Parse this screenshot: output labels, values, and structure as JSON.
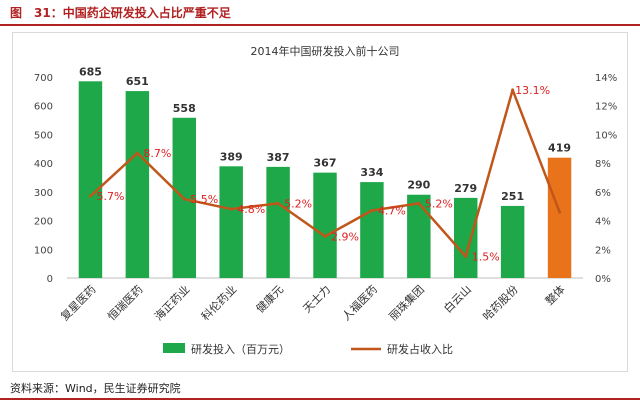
{
  "figure": {
    "title": "图　31：中国药企研发投入占比严重不足",
    "source": "资料来源：Wind，民生证券研究院"
  },
  "chart_data": {
    "type": "bar+line",
    "title": "2014年中国研发投入前十公司",
    "categories": [
      "复星医药",
      "恒瑞医药",
      "海正药业",
      "科伦药业",
      "健康元",
      "天士力",
      "人福医药",
      "丽珠集团",
      "白云山",
      "哈药股份",
      "整体"
    ],
    "series": [
      {
        "name": "研发投入（百万元）",
        "type": "bar",
        "axis": "left",
        "values": [
          685,
          651,
          558,
          389,
          387,
          367,
          334,
          290,
          279,
          251,
          419
        ],
        "labels": [
          "685",
          "651",
          "558",
          "389",
          "387",
          "367",
          "334",
          "290",
          "279",
          "251",
          "419"
        ],
        "color": "#1fa84a",
        "highlight_color": "#e8731a",
        "highlight_index": 10
      },
      {
        "name": "研发占收入比",
        "type": "line",
        "axis": "right",
        "values": [
          5.7,
          8.7,
          5.5,
          4.8,
          5.2,
          2.9,
          4.7,
          5.2,
          1.5,
          13.1,
          4.6
        ],
        "labels": [
          "5.7%",
          "8.7%",
          "5.5%",
          "4.8%",
          "5.2%",
          "2.9%",
          "4.7%",
          "5.2%",
          "1.5%",
          "13.1%",
          ""
        ],
        "color": "#c0561a",
        "label_color": "#e02020"
      }
    ],
    "y_left": {
      "ticks": [
        "0",
        "100",
        "200",
        "300",
        "400",
        "500",
        "600",
        "700"
      ],
      "ylim": [
        0,
        700
      ]
    },
    "y_right": {
      "ticks": [
        "0%",
        "2%",
        "4%",
        "6%",
        "8%",
        "10%",
        "12%",
        "14%"
      ],
      "ylim": [
        0,
        14
      ]
    },
    "grid": false,
    "legend_position": "bottom"
  }
}
